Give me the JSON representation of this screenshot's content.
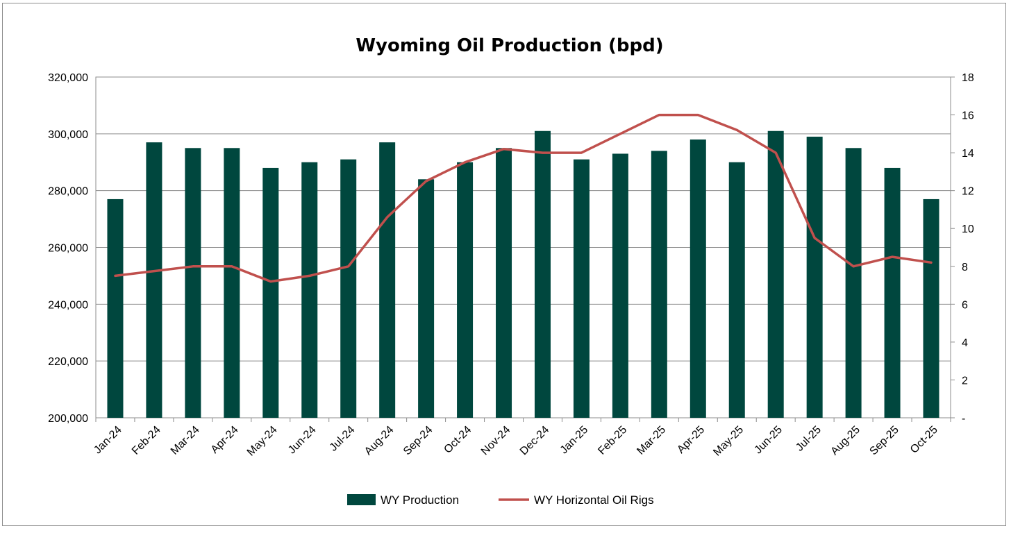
{
  "chart_data": {
    "type": "bar",
    "title": "Wyoming Oil Production (bpd)",
    "categories": [
      "Jan-24",
      "Feb-24",
      "Mar-24",
      "Apr-24",
      "May-24",
      "Jun-24",
      "Jul-24",
      "Aug-24",
      "Sep-24",
      "Oct-24",
      "Nov-24",
      "Dec-24",
      "Jan-25",
      "Feb-25",
      "Mar-25",
      "Apr-25",
      "May-25",
      "Jun-25",
      "Jul-25",
      "Aug-25",
      "Sep-25",
      "Oct-25"
    ],
    "series": [
      {
        "name": "WY Production",
        "type": "bar",
        "axis": "left",
        "color": "#00473e",
        "values": [
          277000,
          297000,
          295000,
          295000,
          288000,
          290000,
          291000,
          297000,
          284000,
          290000,
          295000,
          301000,
          291000,
          293000,
          294000,
          298000,
          290000,
          301000,
          299000,
          295000,
          288000,
          277000
        ]
      },
      {
        "name": "WY Horizontal Oil Rigs",
        "type": "line",
        "axis": "right",
        "color": "#c0504d",
        "values": [
          7.5,
          7.75,
          8,
          8,
          7.2,
          7.5,
          8,
          10.6,
          12.5,
          13.5,
          14.2,
          14,
          14,
          15,
          16,
          16,
          15.2,
          14,
          9.5,
          8,
          8.5,
          8.2
        ]
      }
    ],
    "y_left": {
      "min": 200000,
      "max": 320000,
      "step": 20000,
      "tick_labels": [
        "200,000",
        "220,000",
        "240,000",
        "260,000",
        "280,000",
        "300,000",
        "320,000"
      ]
    },
    "y_right": {
      "min": 0,
      "max": 18,
      "step": 2,
      "tick_labels": [
        "-",
        "2",
        "4",
        "6",
        "8",
        "10",
        "12",
        "14",
        "16",
        "18"
      ]
    },
    "grid": true,
    "legend_position": "bottom"
  }
}
